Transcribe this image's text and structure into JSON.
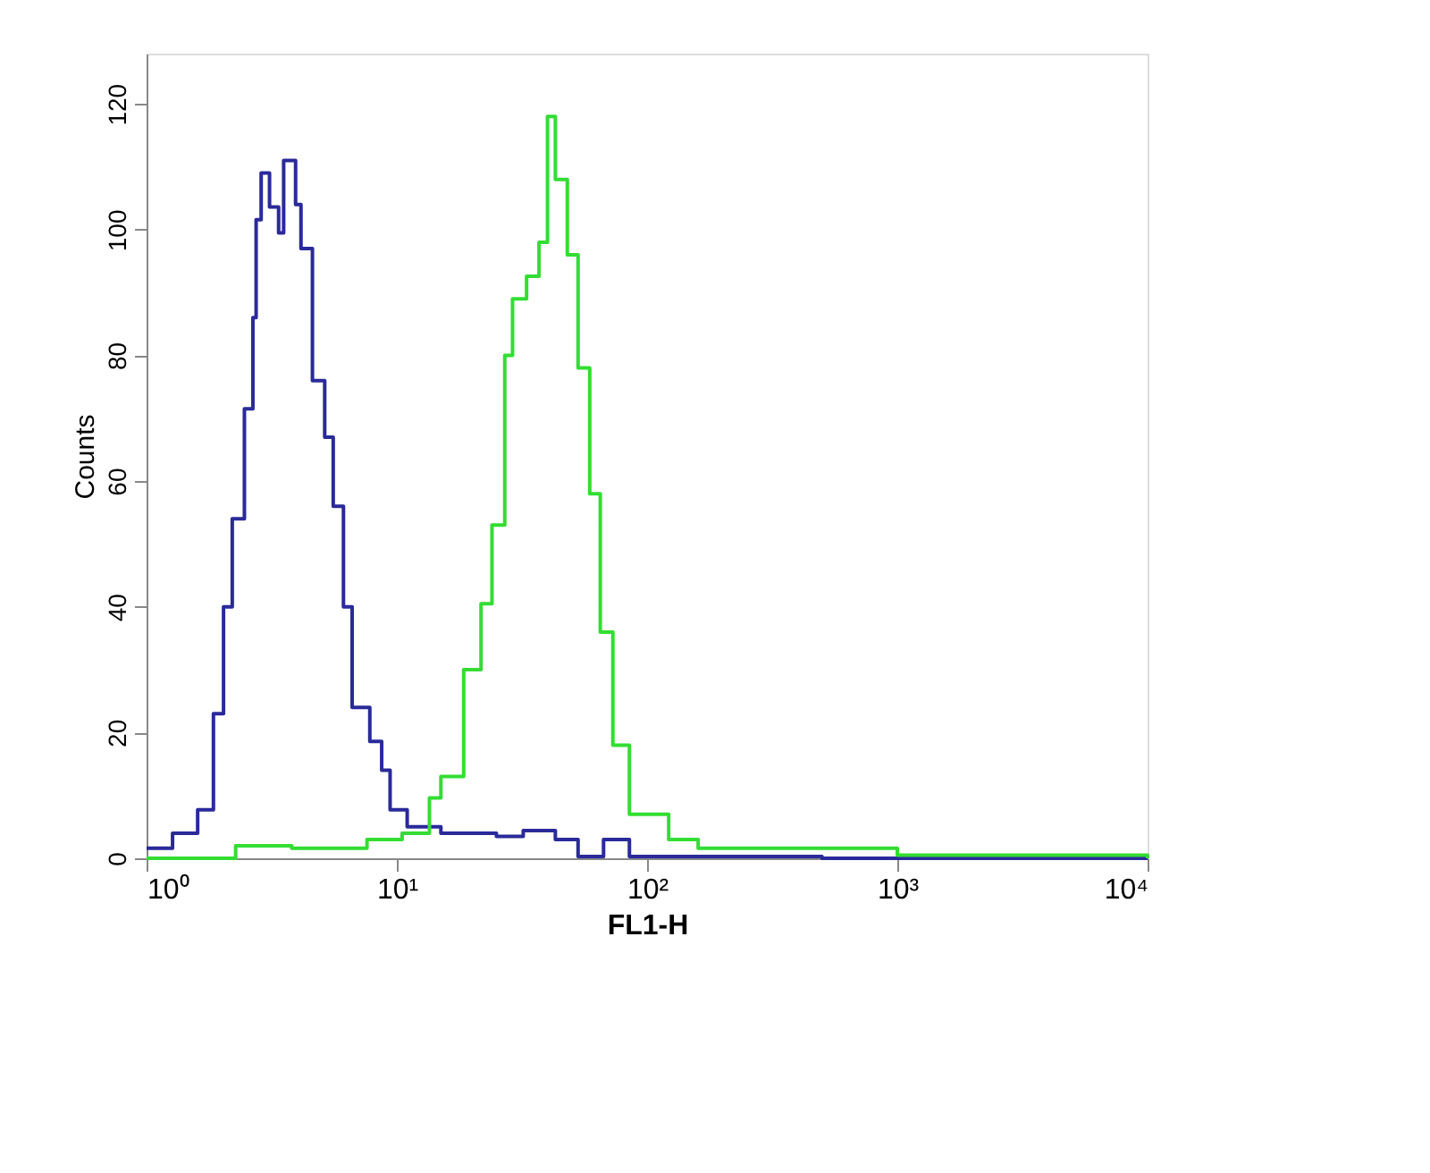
{
  "chart_data": {
    "type": "step",
    "xlabel": "FL1-H",
    "ylabel": "Counts",
    "log": "x",
    "grid": false,
    "legend": false,
    "marker": "none",
    "line_style": "solid",
    "xlim": [
      1,
      10000
    ],
    "ylim": [
      0,
      128
    ],
    "xticks": [
      {
        "value": 1,
        "label": "10⁰"
      },
      {
        "value": 10,
        "label": "10¹"
      },
      {
        "value": 100,
        "label": "10²"
      },
      {
        "value": 1000,
        "label": "10³"
      },
      {
        "value": 10000,
        "label": "10⁴"
      }
    ],
    "yticks": [
      0,
      20,
      40,
      60,
      80,
      100,
      120
    ],
    "series": [
      {
        "color": "#2a2a9a",
        "x": [
          1,
          1.27,
          1.6,
          1.85,
          2.03,
          2.2,
          2.46,
          2.66,
          2.74,
          2.87,
          3.1,
          3.37,
          3.53,
          3.94,
          4.14,
          4.6,
          5.15,
          5.57,
          6.12,
          6.63,
          7.8,
          8.7,
          9.4,
          11,
          15,
          25,
          32,
          43,
          53,
          67,
          85,
          122,
          500,
          10000
        ],
        "values": [
          1.6,
          4,
          7.7,
          23,
          40,
          54,
          71.5,
          86,
          101.6,
          109,
          103.6,
          99.5,
          111,
          104,
          97,
          76,
          67,
          56,
          40,
          24,
          18.6,
          14,
          7.7,
          5,
          4,
          3.5,
          4.4,
          3,
          0.3,
          3,
          0.3,
          0.3,
          0,
          0
        ]
      },
      {
        "color": "#33dd33",
        "x": [
          1,
          2.2,
          2.27,
          3.8,
          6.5,
          7.6,
          10.5,
          13.5,
          15,
          18.5,
          21.7,
          24,
          27,
          29,
          33,
          37,
          40,
          43,
          48,
          53,
          59,
          65,
          73,
          85,
          122,
          160,
          1000,
          10000
        ],
        "values": [
          0,
          0,
          2,
          1.6,
          1.6,
          3,
          4,
          9.6,
          13,
          30,
          40.5,
          53,
          80,
          89,
          92.6,
          98,
          118,
          108,
          96,
          78,
          58,
          36,
          18,
          7,
          3,
          1.6,
          0.5,
          0
        ]
      }
    ]
  }
}
